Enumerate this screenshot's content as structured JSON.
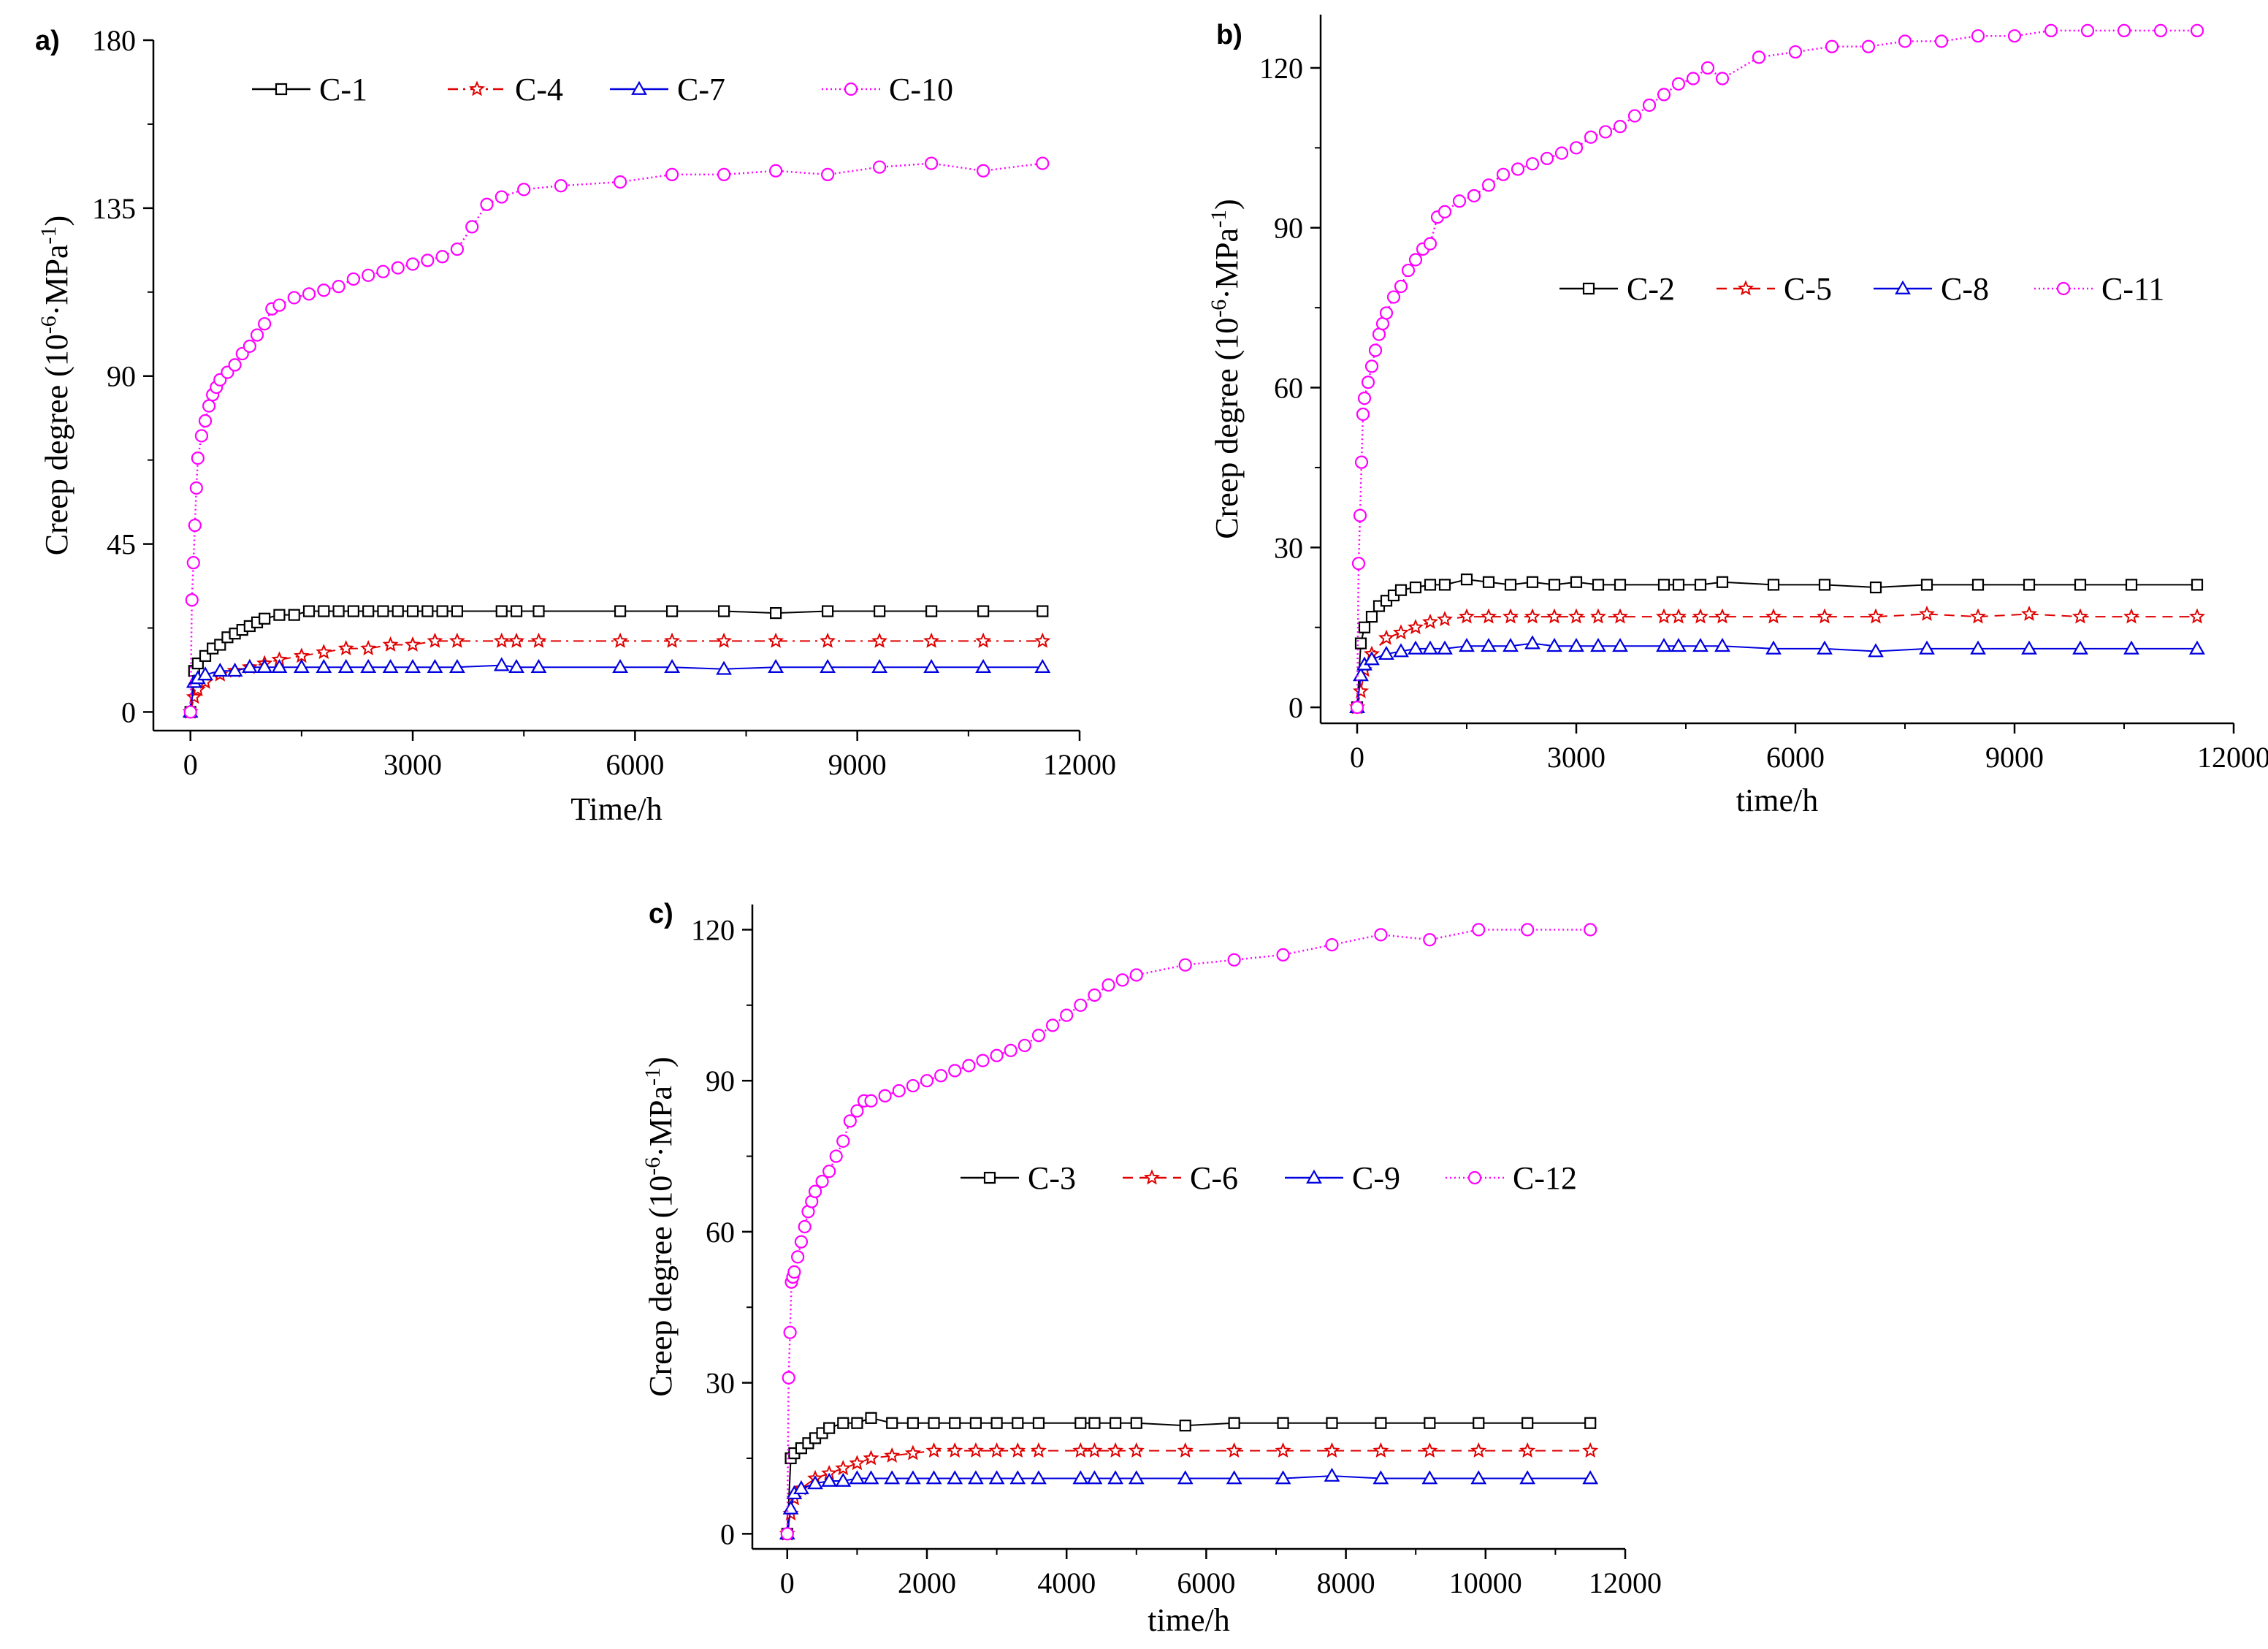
{
  "figure": {
    "panels": [
      "a)",
      "b)",
      "c)"
    ]
  },
  "chart_data": [
    {
      "panel_label": "a)",
      "type": "line",
      "title": "",
      "xlabel": "Time/h",
      "ylabel": "Creep degree (10⁻⁶·MPa⁻¹)",
      "ylabel_parts": {
        "main": "Creep degree (10",
        "sup1": "-6",
        "mid": "·MPa",
        "sup2": "-1",
        "end": ")"
      },
      "xlim": [
        -500,
        12000
      ],
      "ylim": [
        -5,
        180
      ],
      "xticks": [
        0,
        3000,
        6000,
        9000,
        12000
      ],
      "xtick_labels": [
        "0",
        "3000",
        "6000",
        "9000",
        "12000"
      ],
      "yticks": [
        0,
        45,
        90,
        135,
        180
      ],
      "ytick_labels": [
        "0",
        "45",
        "90",
        "135",
        "180"
      ],
      "legend_position": "top",
      "series": [
        {
          "name": "C-1",
          "marker": "square",
          "color": "#000000",
          "dash": "solid",
          "x": [
            0,
            50,
            100,
            200,
            300,
            400,
            500,
            600,
            700,
            800,
            900,
            1000,
            1200,
            1400,
            1600,
            1800,
            2000,
            2200,
            2400,
            2600,
            2800,
            3000,
            3200,
            3400,
            3600,
            4200,
            4400,
            4700,
            5800,
            6500,
            7200,
            7900,
            8600,
            9300,
            10000,
            10700,
            11500
          ],
          "values": [
            0,
            11,
            13,
            15,
            17,
            18,
            20,
            21,
            22,
            23,
            24,
            25,
            26,
            26,
            27,
            27,
            27,
            27,
            27,
            27,
            27,
            27,
            27,
            27,
            27,
            27,
            27,
            27,
            27,
            27,
            27,
            26.5,
            27,
            27,
            27,
            27,
            27
          ]
        },
        {
          "name": "C-4",
          "marker": "star",
          "color": "#e00000",
          "dash": "dashdot",
          "x": [
            0,
            50,
            100,
            200,
            400,
            600,
            800,
            1000,
            1200,
            1500,
            1800,
            2100,
            2400,
            2700,
            3000,
            3300,
            3600,
            4200,
            4400,
            4700,
            5800,
            6500,
            7200,
            7900,
            8600,
            9300,
            10000,
            10700,
            11500
          ],
          "values": [
            0,
            4,
            6,
            8,
            10,
            11,
            12,
            13,
            14,
            15,
            16,
            17,
            17,
            18,
            18,
            19,
            19,
            19,
            19,
            19,
            19,
            19,
            19,
            19,
            19,
            19,
            19,
            19,
            19
          ]
        },
        {
          "name": "C-7",
          "marker": "triangle",
          "color": "#0000e0",
          "dash": "solid",
          "x": [
            0,
            50,
            100,
            200,
            400,
            600,
            800,
            1000,
            1200,
            1500,
            1800,
            2100,
            2400,
            2700,
            3000,
            3300,
            3600,
            4200,
            4400,
            4700,
            5800,
            6500,
            7200,
            7900,
            8600,
            9300,
            10000,
            10700,
            11500
          ],
          "values": [
            0,
            8,
            9,
            10,
            11,
            11,
            12,
            12,
            12,
            12,
            12,
            12,
            12,
            12,
            12,
            12,
            12,
            12.5,
            12,
            12,
            12,
            12,
            11.5,
            12,
            12,
            12,
            12,
            12,
            12
          ]
        },
        {
          "name": "C-10",
          "marker": "circle",
          "color": "#ff00ff",
          "dash": "dotted",
          "x": [
            0,
            20,
            40,
            60,
            80,
            100,
            150,
            200,
            250,
            300,
            350,
            400,
            500,
            600,
            700,
            800,
            900,
            1000,
            1100,
            1200,
            1400,
            1600,
            1800,
            2000,
            2200,
            2400,
            2600,
            2800,
            3000,
            3200,
            3400,
            3600,
            3800,
            4000,
            4200,
            4500,
            5000,
            5800,
            6500,
            7200,
            7900,
            8600,
            9300,
            10000,
            10700,
            11500
          ],
          "values": [
            0,
            30,
            40,
            50,
            60,
            68,
            74,
            78,
            82,
            85,
            87,
            89,
            91,
            93,
            96,
            98,
            101,
            104,
            108,
            109,
            111,
            112,
            113,
            114,
            116,
            117,
            118,
            119,
            120,
            121,
            122,
            124,
            130,
            136,
            138,
            140,
            141,
            142,
            144,
            144,
            145,
            144,
            146,
            147,
            145,
            147
          ]
        }
      ]
    },
    {
      "panel_label": "b)",
      "type": "line",
      "title": "",
      "xlabel": "time/h",
      "ylabel": "Creep degree (10⁻⁶·MPa⁻¹)",
      "ylabel_parts": {
        "main": "Creep degree (10",
        "sup1": "-6",
        "mid": "·MPa",
        "sup2": "-1",
        "end": ")"
      },
      "xlim": [
        -500,
        12000
      ],
      "ylim": [
        -3,
        130
      ],
      "xticks": [
        0,
        3000,
        6000,
        9000,
        12000
      ],
      "xtick_labels": [
        "0",
        "3000",
        "6000",
        "9000",
        "12000"
      ],
      "yticks": [
        0,
        30,
        60,
        90,
        120
      ],
      "ytick_labels": [
        "0",
        "30",
        "60",
        "90",
        "120"
      ],
      "legend_position": "right",
      "series": [
        {
          "name": "C-2",
          "marker": "square",
          "color": "#000000",
          "dash": "solid",
          "x": [
            0,
            50,
            100,
            200,
            300,
            400,
            500,
            600,
            800,
            1000,
            1200,
            1500,
            1800,
            2100,
            2400,
            2700,
            3000,
            3300,
            3600,
            4200,
            4400,
            4700,
            5000,
            5700,
            6400,
            7100,
            7800,
            8500,
            9200,
            9900,
            10600,
            11500
          ],
          "values": [
            0,
            12,
            15,
            17,
            19,
            20,
            21,
            22,
            22.5,
            23,
            23,
            24,
            23.5,
            23,
            23.5,
            23,
            23.5,
            23,
            23,
            23,
            23,
            23,
            23.5,
            23,
            23,
            22.5,
            23,
            23,
            23,
            23,
            23,
            23
          ]
        },
        {
          "name": "C-5",
          "marker": "star",
          "color": "#e00000",
          "dash": "dashed",
          "x": [
            0,
            50,
            100,
            200,
            400,
            600,
            800,
            1000,
            1200,
            1500,
            1800,
            2100,
            2400,
            2700,
            3000,
            3300,
            3600,
            4200,
            4400,
            4700,
            5000,
            5700,
            6400,
            7100,
            7800,
            8500,
            9200,
            9900,
            10600,
            11500
          ],
          "values": [
            0,
            3,
            7,
            10,
            13,
            14,
            15,
            16,
            16.5,
            17,
            17,
            17,
            17,
            17,
            17,
            17,
            17,
            17,
            17,
            17,
            17,
            17,
            17,
            17,
            17.5,
            17,
            17.5,
            17,
            17,
            17
          ]
        },
        {
          "name": "C-8",
          "marker": "triangle",
          "color": "#0000e0",
          "dash": "solid",
          "x": [
            0,
            50,
            100,
            200,
            400,
            600,
            800,
            1000,
            1200,
            1500,
            1800,
            2100,
            2400,
            2700,
            3000,
            3300,
            3600,
            4200,
            4400,
            4700,
            5000,
            5700,
            6400,
            7100,
            7800,
            8500,
            9200,
            9900,
            10600,
            11500
          ],
          "values": [
            0,
            6,
            8,
            9,
            10,
            10.5,
            11,
            11,
            11,
            11.5,
            11.5,
            11.5,
            12,
            11.5,
            11.5,
            11.5,
            11.5,
            11.5,
            11.5,
            11.5,
            11.5,
            11,
            11,
            10.5,
            11,
            11,
            11,
            11,
            11,
            11
          ]
        },
        {
          "name": "C-11",
          "marker": "circle",
          "color": "#ff00ff",
          "dash": "dotted",
          "x": [
            0,
            20,
            40,
            60,
            80,
            100,
            150,
            200,
            250,
            300,
            350,
            400,
            500,
            600,
            700,
            800,
            900,
            1000,
            1100,
            1200,
            1400,
            1600,
            1800,
            2000,
            2200,
            2400,
            2600,
            2800,
            3000,
            3200,
            3400,
            3600,
            3800,
            4000,
            4200,
            4400,
            4600,
            4800,
            5000,
            5500,
            6000,
            6500,
            7000,
            7500,
            8000,
            8500,
            9000,
            9500,
            10000,
            10500,
            11000,
            11500
          ],
          "values": [
            0,
            27,
            36,
            46,
            55,
            58,
            61,
            64,
            67,
            70,
            72,
            74,
            77,
            79,
            82,
            84,
            86,
            87,
            92,
            93,
            95,
            96,
            98,
            100,
            101,
            102,
            103,
            104,
            105,
            107,
            108,
            109,
            111,
            113,
            115,
            117,
            118,
            120,
            118,
            122,
            123,
            124,
            124,
            125,
            125,
            126,
            126,
            127,
            127,
            127,
            127,
            127
          ]
        }
      ]
    },
    {
      "panel_label": "c)",
      "type": "line",
      "title": "",
      "xlabel": "time/h",
      "ylabel": "Creep degree (10⁻⁶·MPa⁻¹)",
      "ylabel_parts": {
        "main": "Creep degree (10",
        "sup1": "-6",
        "mid": "·MPa",
        "sup2": "-1",
        "end": ")"
      },
      "xlim": [
        -500,
        12000
      ],
      "ylim": [
        -3,
        125
      ],
      "xticks": [
        0,
        2000,
        4000,
        6000,
        8000,
        10000,
        12000
      ],
      "xtick_labels": [
        "0",
        "2000",
        "4000",
        "6000",
        "8000",
        "10000",
        "12000"
      ],
      "yticks": [
        0,
        30,
        60,
        90,
        120
      ],
      "ytick_labels": [
        "0",
        "30",
        "60",
        "90",
        "120"
      ],
      "legend_position": "center-right",
      "series": [
        {
          "name": "C-3",
          "marker": "square",
          "color": "#000000",
          "dash": "solid",
          "x": [
            0,
            50,
            100,
            200,
            300,
            400,
            500,
            600,
            800,
            1000,
            1200,
            1500,
            1800,
            2100,
            2400,
            2700,
            3000,
            3300,
            3600,
            4200,
            4400,
            4700,
            5000,
            5700,
            6400,
            7100,
            7800,
            8500,
            9200,
            9900,
            10600,
            11500
          ],
          "values": [
            0,
            15,
            16,
            17,
            18,
            19,
            20,
            21,
            22,
            22,
            23,
            22,
            22,
            22,
            22,
            22,
            22,
            22,
            22,
            22,
            22,
            22,
            22,
            21.5,
            22,
            22,
            22,
            22,
            22,
            22,
            22,
            22
          ]
        },
        {
          "name": "C-6",
          "marker": "star",
          "color": "#e00000",
          "dash": "dashed",
          "x": [
            0,
            50,
            100,
            200,
            400,
            600,
            800,
            1000,
            1200,
            1500,
            1800,
            2100,
            2400,
            2700,
            3000,
            3300,
            3600,
            4200,
            4400,
            4700,
            5000,
            5700,
            6400,
            7100,
            7800,
            8500,
            9200,
            9900,
            10600,
            11500
          ],
          "values": [
            0,
            4,
            7,
            9,
            11,
            12,
            13,
            14,
            15,
            15.5,
            16,
            16.5,
            16.5,
            16.5,
            16.5,
            16.5,
            16.5,
            16.5,
            16.5,
            16.5,
            16.5,
            16.5,
            16.5,
            16.5,
            16.5,
            16.5,
            16.5,
            16.5,
            16.5,
            16.5
          ]
        },
        {
          "name": "C-9",
          "marker": "triangle",
          "color": "#0000e0",
          "dash": "solid",
          "x": [
            0,
            50,
            100,
            200,
            400,
            600,
            800,
            1000,
            1200,
            1500,
            1800,
            2100,
            2400,
            2700,
            3000,
            3300,
            3600,
            4200,
            4400,
            4700,
            5000,
            5700,
            6400,
            7100,
            7800,
            8500,
            9200,
            9900,
            10600,
            11500
          ],
          "values": [
            0,
            5,
            8,
            9,
            10,
            10.5,
            10.5,
            11,
            11,
            11,
            11,
            11,
            11,
            11,
            11,
            11,
            11,
            11,
            11,
            11,
            11,
            11,
            11,
            11,
            11.5,
            11,
            11,
            11,
            11,
            11
          ]
        },
        {
          "name": "C-12",
          "marker": "circle",
          "color": "#ff00ff",
          "dash": "dotted",
          "x": [
            0,
            20,
            40,
            60,
            80,
            100,
            150,
            200,
            250,
            300,
            350,
            400,
            500,
            600,
            700,
            800,
            900,
            1000,
            1100,
            1200,
            1400,
            1600,
            1800,
            2000,
            2200,
            2400,
            2600,
            2800,
            3000,
            3200,
            3400,
            3600,
            3800,
            4000,
            4200,
            4400,
            4600,
            4800,
            5000,
            5700,
            6400,
            7100,
            7800,
            8500,
            9200,
            9900,
            10600,
            11500
          ],
          "values": [
            0,
            31,
            40,
            50,
            51,
            52,
            55,
            58,
            61,
            64,
            66,
            68,
            70,
            72,
            75,
            78,
            82,
            84,
            86,
            86,
            87,
            88,
            89,
            90,
            91,
            92,
            93,
            94,
            95,
            96,
            97,
            99,
            101,
            103,
            105,
            107,
            109,
            110,
            111,
            113,
            114,
            115,
            117,
            119,
            118,
            120,
            120,
            120
          ]
        }
      ]
    }
  ]
}
